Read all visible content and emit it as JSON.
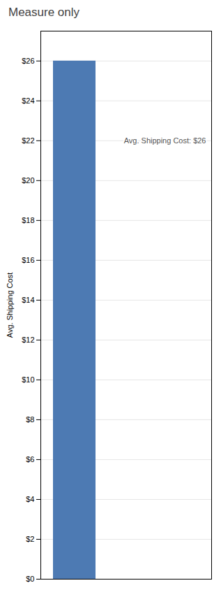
{
  "chart_data": {
    "type": "bar",
    "title": "Measure only",
    "categories": [
      null
    ],
    "values": [
      26
    ],
    "color": "#4d7ab3",
    "ylabel": "Avg. Shipping Cost",
    "ylim": [
      0,
      27.5
    ],
    "yticks": [
      {
        "value": 0,
        "label": "$0"
      },
      {
        "value": 2,
        "label": "$2"
      },
      {
        "value": 4,
        "label": "$4"
      },
      {
        "value": 6,
        "label": "$6"
      },
      {
        "value": 8,
        "label": "$8"
      },
      {
        "value": 10,
        "label": "$10"
      },
      {
        "value": 12,
        "label": "$12"
      },
      {
        "value": 14,
        "label": "$14"
      },
      {
        "value": 16,
        "label": "$16"
      },
      {
        "value": 18,
        "label": "$18"
      },
      {
        "value": 20,
        "label": "$20"
      },
      {
        "value": 22,
        "label": "$22"
      },
      {
        "value": 24,
        "label": "$24"
      },
      {
        "value": 26,
        "label": "$26"
      }
    ],
    "grid": true,
    "tick_labels": "y",
    "annotations": [
      {
        "text": "Avg. Shipping Cost: $26",
        "y": 22
      }
    ]
  }
}
